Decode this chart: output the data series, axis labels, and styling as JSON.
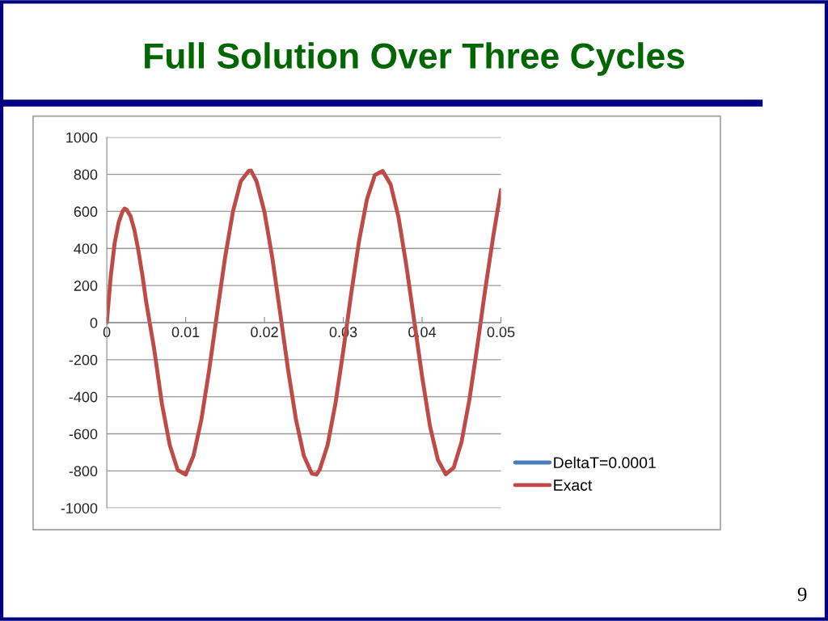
{
  "chart_data": {
    "type": "line",
    "title": "Full Solution Over Three Cycles",
    "x": [
      0,
      0.0005,
      0.001,
      0.0015,
      0.002,
      0.00225,
      0.0025,
      0.003,
      0.0035,
      0.004,
      0.0045,
      0.005,
      0.006,
      0.007,
      0.008,
      0.009,
      0.01,
      0.011,
      0.012,
      0.013,
      0.014,
      0.015,
      0.016,
      0.017,
      0.018,
      0.0183,
      0.019,
      0.02,
      0.021,
      0.022,
      0.023,
      0.024,
      0.025,
      0.026,
      0.0266,
      0.027,
      0.028,
      0.029,
      0.03,
      0.031,
      0.032,
      0.033,
      0.034,
      0.035,
      0.036,
      0.037,
      0.038,
      0.039,
      0.04,
      0.041,
      0.042,
      0.043,
      0.044,
      0.045,
      0.046,
      0.047,
      0.048,
      0.049,
      0.05
    ],
    "series": [
      {
        "name": "DeltaT=0.0001",
        "color": "#4a7ebb",
        "values": [
          null,
          null,
          null,
          null,
          null,
          null,
          null,
          null,
          null,
          null,
          null,
          null,
          null,
          null,
          null,
          null,
          null,
          null,
          null,
          null,
          null,
          null,
          null,
          null,
          null,
          null,
          null,
          null,
          null,
          null,
          null,
          null,
          null,
          null,
          null,
          null,
          null,
          null,
          null,
          null,
          null,
          null,
          null,
          null,
          null,
          null,
          null,
          null,
          null,
          null,
          null,
          null,
          null,
          null,
          null,
          null,
          null,
          null,
          null
        ]
      },
      {
        "name": "Exact",
        "color": "#be4b48",
        "values": [
          0,
          250,
          430,
          540,
          600,
          615,
          610,
          575,
          500,
          390,
          260,
          110,
          -140,
          -440,
          -663,
          -796,
          -820,
          -718,
          -522,
          -252,
          53,
          350,
          599,
          763,
          818,
          820,
          762,
          597,
          348,
          50,
          -255,
          -524,
          -719,
          -814,
          -820,
          -794,
          -662,
          -438,
          -152,
          155,
          440,
          665,
          795,
          818,
          746,
          570,
          308,
          9,
          -291,
          -559,
          -740,
          -818,
          -783,
          -644,
          -415,
          -128,
          177,
          459,
          715
        ]
      }
    ],
    "xlim": [
      0,
      0.05
    ],
    "xticks": [
      0,
      0.01,
      0.02,
      0.03,
      0.04,
      0.05
    ],
    "ylim": [
      -1000,
      1000
    ],
    "yticks": [
      -1000,
      -800,
      -600,
      -400,
      -200,
      0,
      200,
      400,
      600,
      800,
      1000
    ],
    "grid": "y",
    "legend": "right",
    "marker": "none",
    "line_style": "solid",
    "annotations": [
      "9"
    ]
  }
}
